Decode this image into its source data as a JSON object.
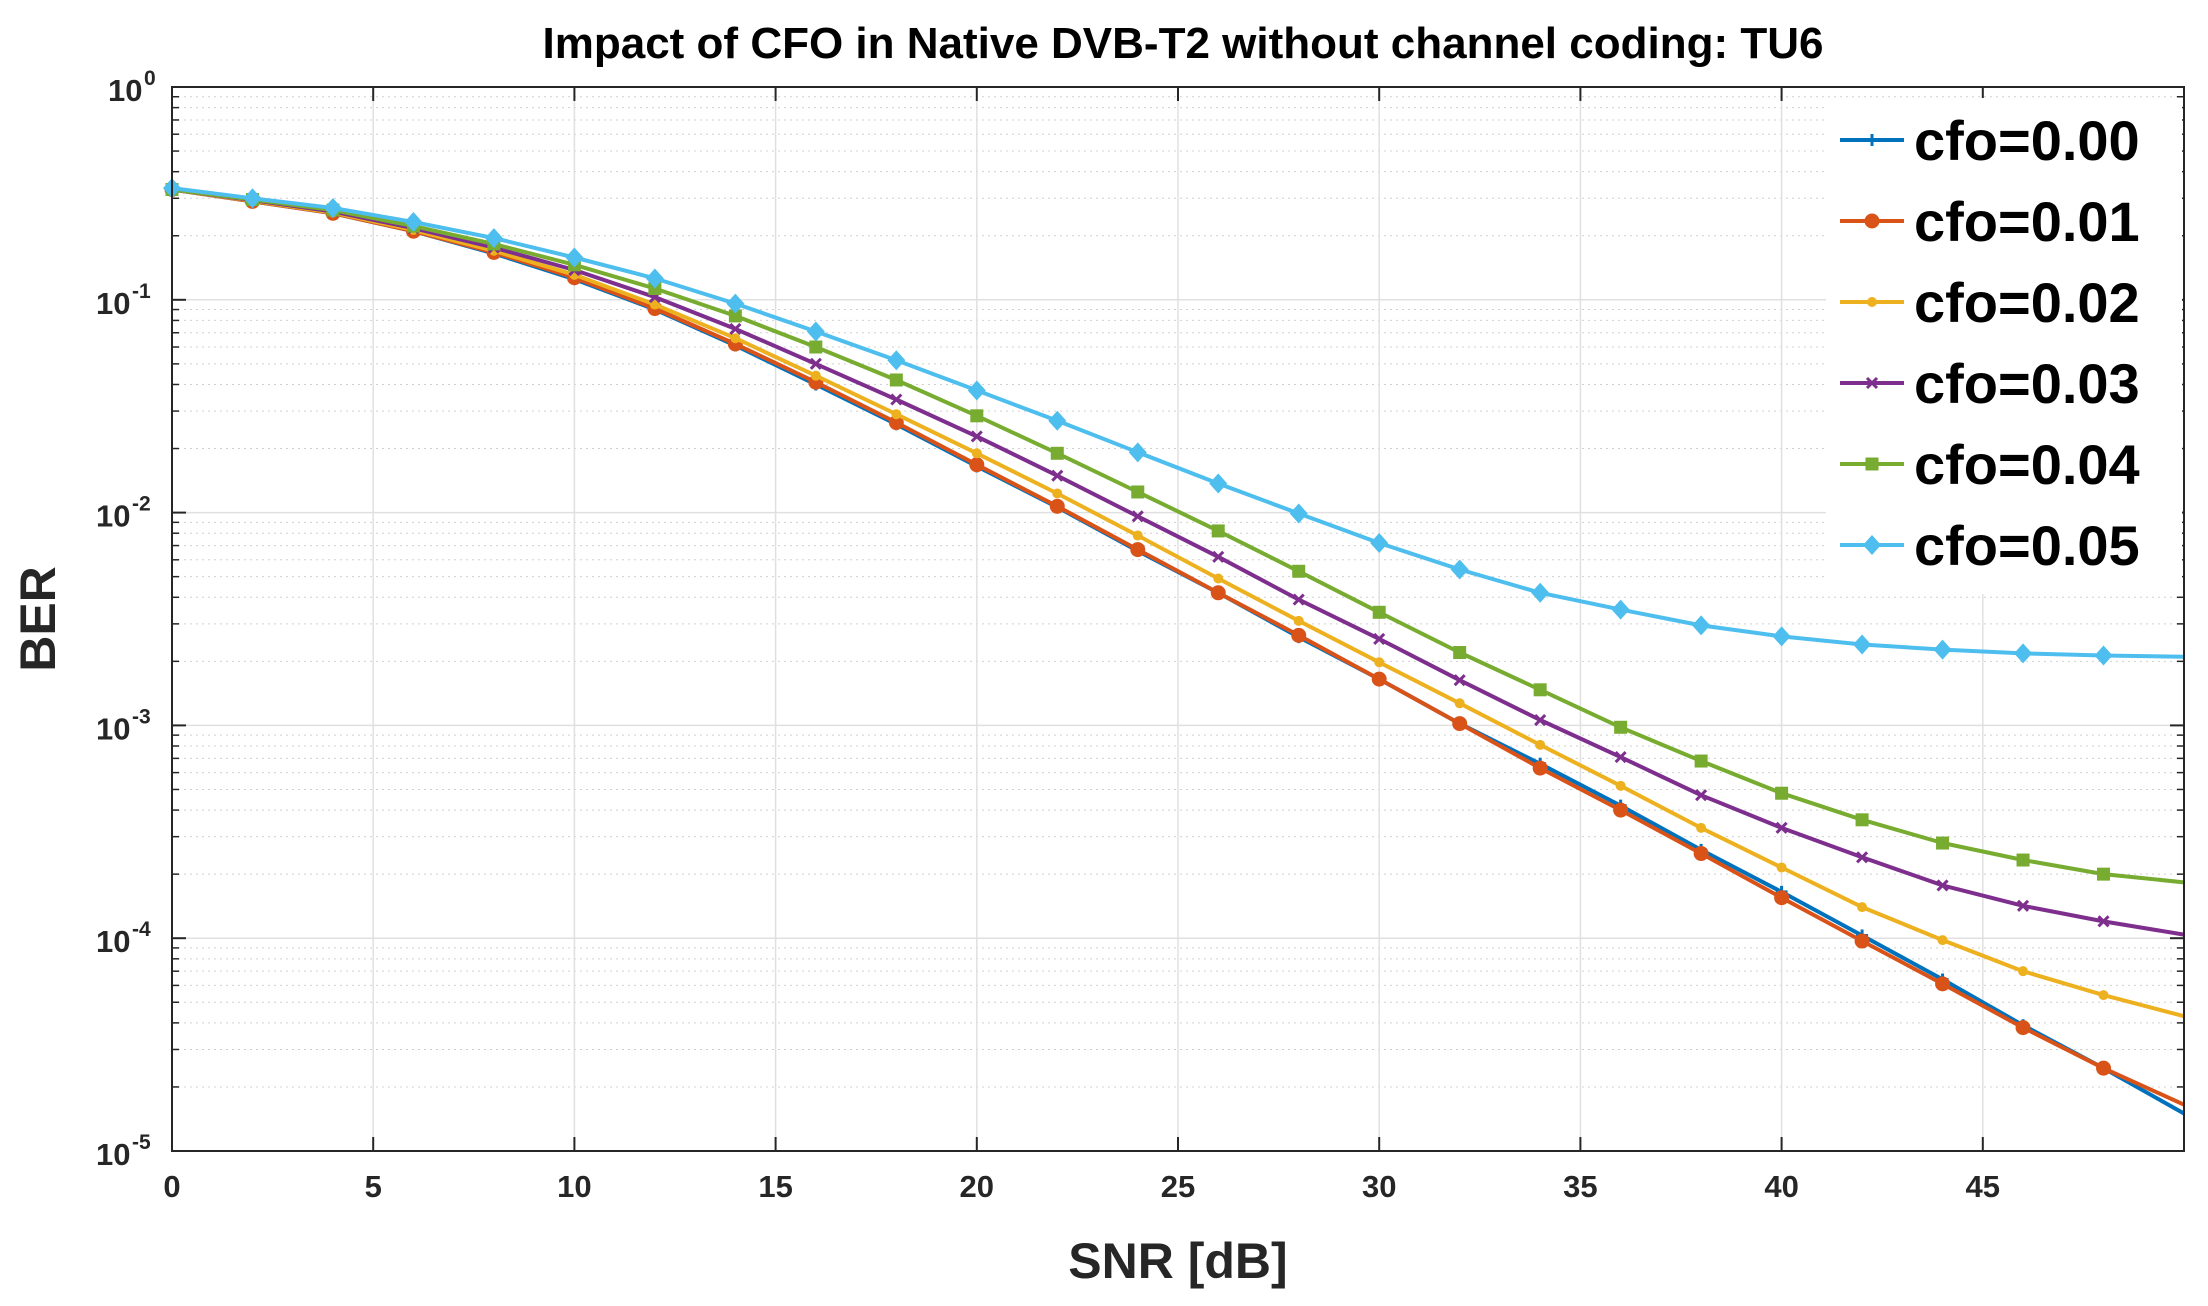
{
  "chart_data": {
    "type": "line",
    "title": "Impact of CFO in Native DVB-T2 without channel coding: TU6",
    "xlabel": "SNR [dB]",
    "ylabel": "BER",
    "xlim": [
      0,
      50
    ],
    "ylim": [
      1e-05,
      1
    ],
    "yscale": "log",
    "grid": true,
    "legend_position": "top-right",
    "x_ticks": [
      {
        "value": 0,
        "label": "0"
      },
      {
        "value": 5,
        "label": "5"
      },
      {
        "value": 10,
        "label": "10"
      },
      {
        "value": 15,
        "label": "15"
      },
      {
        "value": 20,
        "label": "20"
      },
      {
        "value": 25,
        "label": "25"
      },
      {
        "value": 30,
        "label": "30"
      },
      {
        "value": 35,
        "label": "35"
      },
      {
        "value": 40,
        "label": "40"
      },
      {
        "value": 45,
        "label": "45"
      }
    ],
    "y_ticks": [
      {
        "value": 1,
        "base": "10",
        "exp": "0"
      },
      {
        "value": 0.1,
        "base": "10",
        "exp": "-1"
      },
      {
        "value": 0.01,
        "base": "10",
        "exp": "-2"
      },
      {
        "value": 0.001,
        "base": "10",
        "exp": "-3"
      },
      {
        "value": 0.0001,
        "base": "10",
        "exp": "-4"
      },
      {
        "value": 1e-05,
        "base": "10",
        "exp": "-5"
      }
    ],
    "x": [
      0,
      2,
      4,
      6,
      8,
      10,
      12,
      14,
      16,
      18,
      20,
      22,
      24,
      26,
      28,
      30,
      32,
      34,
      36,
      38,
      40,
      42,
      44,
      46,
      48,
      50
    ],
    "series": [
      {
        "name": "cfo=0.00",
        "color": "#0072BD",
        "marker": "plus",
        "values": [
          0.33,
          0.29,
          0.255,
          0.21,
          0.165,
          0.125,
          0.09,
          0.061,
          0.04,
          0.026,
          0.0165,
          0.0106,
          0.0066,
          0.0042,
          0.0026,
          0.00165,
          0.00102,
          0.00066,
          0.00042,
          0.00026,
          0.000165,
          0.000103,
          6.4e-05,
          3.9e-05,
          2.45e-05,
          1.5e-05
        ]
      },
      {
        "name": "cfo=0.01",
        "color": "#D95319",
        "marker": "circle",
        "values": [
          0.33,
          0.29,
          0.255,
          0.21,
          0.167,
          0.127,
          0.091,
          0.062,
          0.041,
          0.0265,
          0.0168,
          0.0107,
          0.0067,
          0.0042,
          0.00265,
          0.00165,
          0.00102,
          0.00063,
          0.0004,
          0.00025,
          0.000155,
          9.7e-05,
          6.1e-05,
          3.8e-05,
          2.45e-05,
          1.65e-05
        ]
      },
      {
        "name": "cfo=0.02",
        "color": "#EDB120",
        "marker": "dot",
        "values": [
          0.33,
          0.292,
          0.257,
          0.213,
          0.17,
          0.131,
          0.095,
          0.066,
          0.044,
          0.029,
          0.019,
          0.0123,
          0.0078,
          0.0049,
          0.0031,
          0.00198,
          0.00127,
          0.00081,
          0.00052,
          0.00033,
          0.000215,
          0.00014,
          9.8e-05,
          7e-05,
          5.4e-05,
          4.3e-05
        ]
      },
      {
        "name": "cfo=0.03",
        "color": "#7E2F8E",
        "marker": "x",
        "values": [
          0.33,
          0.294,
          0.26,
          0.217,
          0.176,
          0.138,
          0.103,
          0.073,
          0.05,
          0.034,
          0.0228,
          0.0149,
          0.0096,
          0.0062,
          0.0039,
          0.00255,
          0.00163,
          0.00106,
          0.00071,
          0.00047,
          0.00033,
          0.00024,
          0.000177,
          0.000142,
          0.00012,
          0.000104
        ]
      },
      {
        "name": "cfo=0.04",
        "color": "#77AC30",
        "marker": "square",
        "values": [
          0.33,
          0.296,
          0.264,
          0.222,
          0.183,
          0.146,
          0.113,
          0.084,
          0.06,
          0.042,
          0.0285,
          0.019,
          0.0125,
          0.0082,
          0.0053,
          0.0034,
          0.0022,
          0.00147,
          0.00098,
          0.00068,
          0.00048,
          0.00036,
          0.00028,
          0.000233,
          0.0002,
          0.000183
        ]
      },
      {
        "name": "cfo=0.05",
        "color": "#4DBEEE",
        "marker": "diamond",
        "values": [
          0.335,
          0.3,
          0.27,
          0.232,
          0.195,
          0.158,
          0.126,
          0.096,
          0.071,
          0.052,
          0.0375,
          0.027,
          0.0192,
          0.0137,
          0.0099,
          0.0072,
          0.0054,
          0.0042,
          0.0035,
          0.00295,
          0.00262,
          0.0024,
          0.00227,
          0.00218,
          0.00213,
          0.0021
        ]
      }
    ]
  }
}
